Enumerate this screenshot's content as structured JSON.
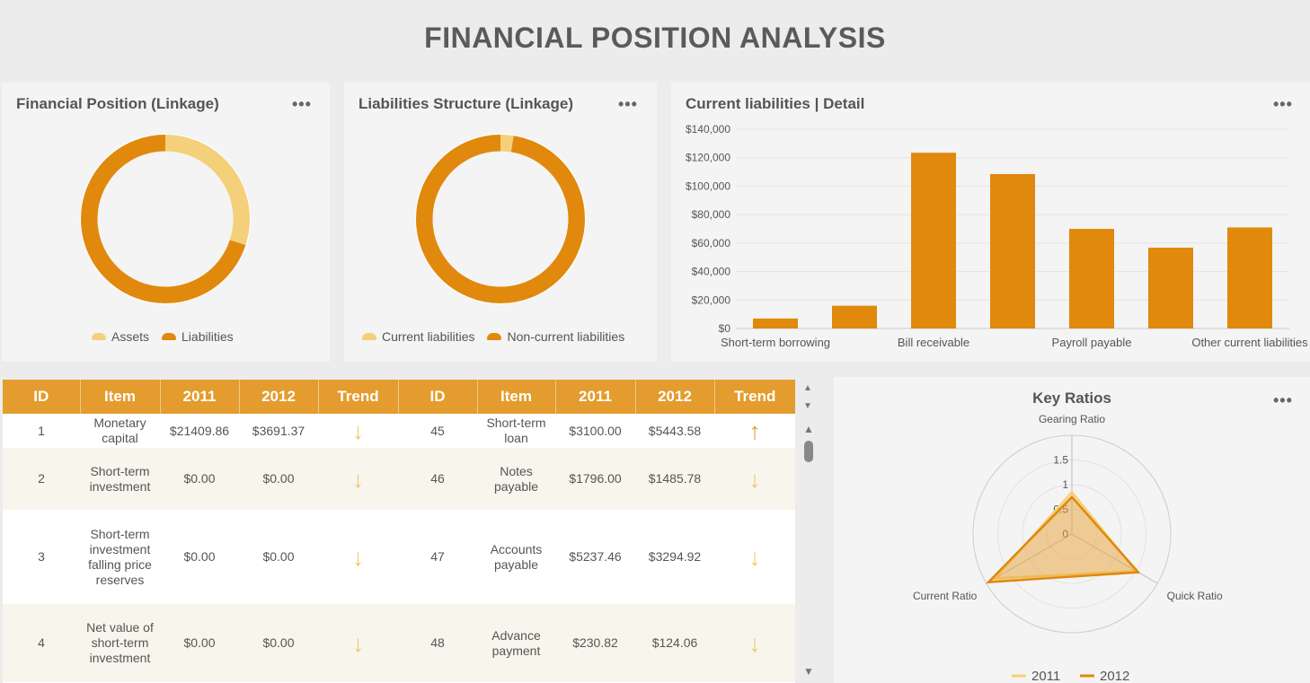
{
  "page": {
    "title": "FINANCIAL POSITION ANALYSIS"
  },
  "colors": {
    "light": "#f5d07a",
    "dark": "#e0890d",
    "header": "#e39c2d"
  },
  "financial_position": {
    "title": "Financial Position (Linkage)",
    "more": "•••",
    "legend": [
      "Assets",
      "Liabilities"
    ],
    "chart_data": {
      "type": "pie",
      "labels": [
        "Assets",
        "Liabilities"
      ],
      "values": [
        30,
        70
      ]
    }
  },
  "liabilities_structure": {
    "title": "Liabilities Structure (Linkage)",
    "more": "•••",
    "legend": [
      "Current liabilities",
      "Non-current liabilities"
    ],
    "chart_data": {
      "type": "pie",
      "labels": [
        "Current liabilities",
        "Non-current liabilities"
      ],
      "values": [
        2.5,
        97.5
      ]
    }
  },
  "current_liabilities": {
    "title": "Current liabilities | Detail",
    "more": "•••",
    "chart_data": {
      "type": "bar",
      "categories": [
        "Short-term borrowing",
        "",
        "Bill receivable",
        "",
        "Payroll payable",
        "",
        "Other current liabilities"
      ],
      "values": [
        7000,
        16000,
        123500,
        108500,
        70000,
        56800,
        71000
      ],
      "ylim": [
        0,
        140000
      ],
      "yticks": [
        "$0",
        "$20,000",
        "$40,000",
        "$60,000",
        "$80,000",
        "$100,000",
        "$120,000",
        "$140,000"
      ]
    }
  },
  "table": {
    "headers": [
      "ID",
      "Item",
      "2011",
      "2012",
      "Trend",
      "ID",
      "Item",
      "2011",
      "2012",
      "Trend"
    ],
    "rows": [
      [
        "1",
        "Monetary capital",
        "$21409.86",
        "$3691.37",
        "down",
        "45",
        "Short-term loan",
        "$3100.00",
        "$5443.58",
        "up"
      ],
      [
        "2",
        "Short-term investment",
        "$0.00",
        "$0.00",
        "down",
        "46",
        "Notes payable",
        "$1796.00",
        "$1485.78",
        "down"
      ],
      [
        "3",
        "Short-term investment falling price reserves",
        "$0.00",
        "$0.00",
        "down",
        "47",
        "Accounts payable",
        "$5237.46",
        "$3294.92",
        "down"
      ],
      [
        "4",
        "Net value of short-term investment",
        "$0.00",
        "$0.00",
        "down",
        "48",
        "Advance payment",
        "$230.82",
        "$124.06",
        "down"
      ]
    ]
  },
  "key_ratios": {
    "title": "Key Ratios",
    "more": "•••",
    "chart_data": {
      "type": "radar",
      "indicators": [
        "Gearing Ratio",
        "Quick Ratio",
        "Current Ratio"
      ],
      "max": 2,
      "ticks": [
        "0",
        "0.5",
        "1",
        "1.5"
      ],
      "series": [
        {
          "name": "2011",
          "values": [
            0.85,
            1.5,
            1.8
          ]
        },
        {
          "name": "2012",
          "values": [
            0.75,
            1.55,
            1.95
          ]
        }
      ]
    }
  }
}
